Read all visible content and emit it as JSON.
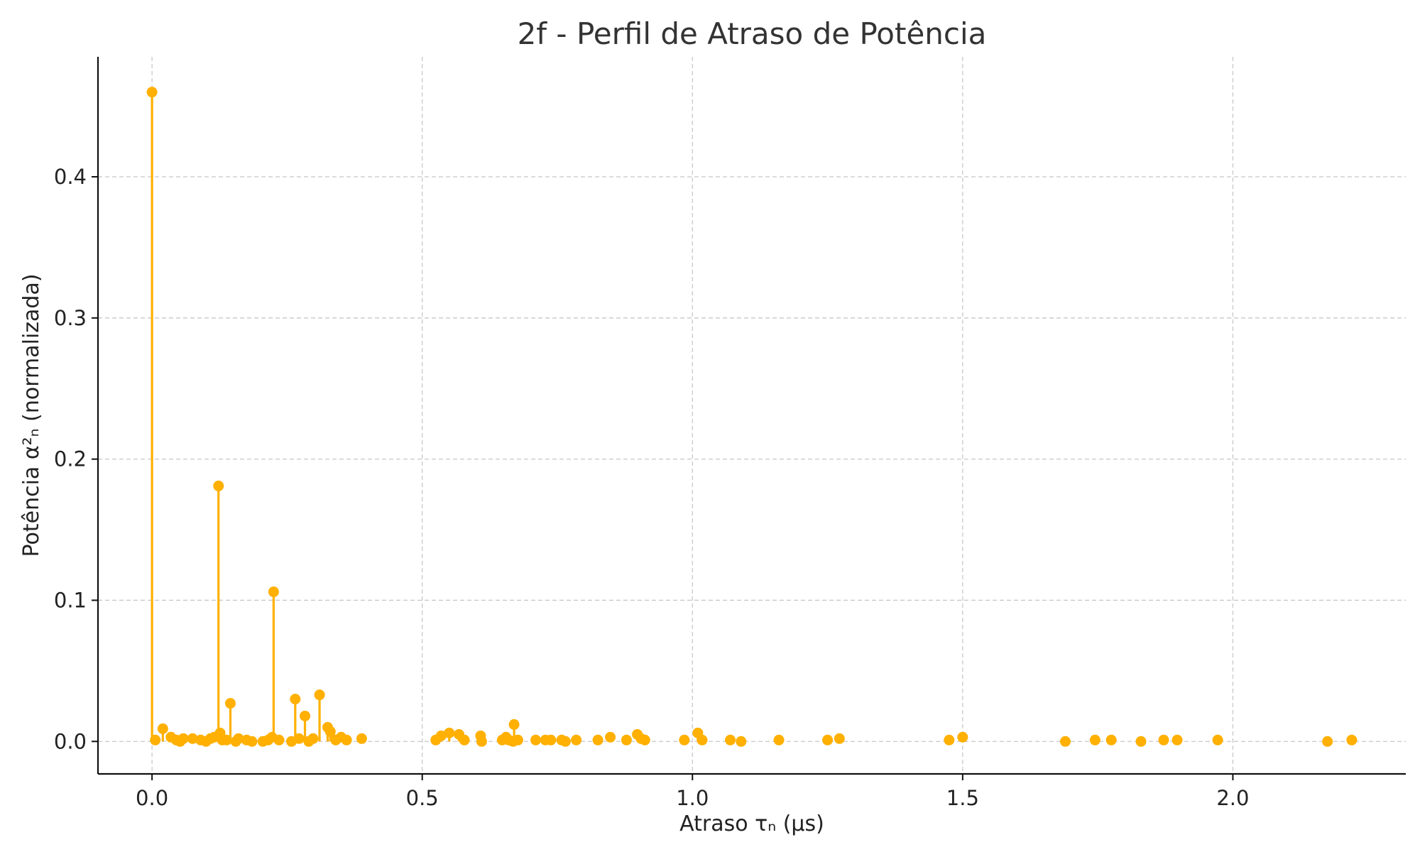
{
  "chart_data": {
    "type": "scatter",
    "style": "stem",
    "title": "2f - Perfil de Atraso de Potência",
    "xlabel": "Atraso τₙ (µs)",
    "ylabel": "Potência α²ₙ (normalizada)",
    "xlim": [
      -0.1,
      2.32
    ],
    "ylim": [
      -0.023,
      0.485
    ],
    "xticks": [
      0.0,
      0.5,
      1.0,
      1.5,
      2.0
    ],
    "xtick_labels": [
      "0.0",
      "0.5",
      "1.0",
      "1.5",
      "2.0"
    ],
    "yticks": [
      0.0,
      0.1,
      0.2,
      0.3,
      0.4
    ],
    "ytick_labels": [
      "0.0",
      "0.1",
      "0.2",
      "0.3",
      "0.4"
    ],
    "grid": true,
    "color": "#FFB000",
    "series": [
      {
        "x": [
          0.0,
          0.006,
          0.02,
          0.035,
          0.045,
          0.052,
          0.058,
          0.075,
          0.09,
          0.1,
          0.108,
          0.115,
          0.123,
          0.126,
          0.13,
          0.138,
          0.145,
          0.155,
          0.16,
          0.175,
          0.185,
          0.205,
          0.215,
          0.222,
          0.225,
          0.235,
          0.258,
          0.265,
          0.272,
          0.283,
          0.29,
          0.298,
          0.31,
          0.325,
          0.33,
          0.34,
          0.35,
          0.36,
          0.388,
          0.525,
          0.535,
          0.55,
          0.568,
          0.578,
          0.608,
          0.61,
          0.648,
          0.655,
          0.66,
          0.668,
          0.67,
          0.677,
          0.71,
          0.728,
          0.738,
          0.758,
          0.765,
          0.785,
          0.825,
          0.848,
          0.878,
          0.898,
          0.905,
          0.912,
          0.985,
          1.01,
          1.018,
          1.07,
          1.09,
          1.16,
          1.25,
          1.272,
          1.475,
          1.5,
          1.69,
          1.745,
          1.775,
          1.83,
          1.872,
          1.897,
          1.972,
          2.175,
          2.22
        ],
        "y": [
          0.46,
          0.001,
          0.009,
          0.003,
          0.001,
          0.0,
          0.002,
          0.002,
          0.001,
          0.0,
          0.002,
          0.003,
          0.181,
          0.006,
          0.001,
          0.001,
          0.027,
          0.0,
          0.002,
          0.001,
          0.0,
          0.0,
          0.001,
          0.003,
          0.106,
          0.001,
          0.0,
          0.03,
          0.002,
          0.018,
          0.0,
          0.002,
          0.033,
          0.01,
          0.007,
          0.001,
          0.003,
          0.001,
          0.002,
          0.001,
          0.004,
          0.006,
          0.005,
          0.001,
          0.004,
          0.0,
          0.001,
          0.003,
          0.001,
          0.0,
          0.012,
          0.001,
          0.001,
          0.001,
          0.001,
          0.001,
          0.0,
          0.001,
          0.001,
          0.003,
          0.001,
          0.005,
          0.002,
          0.001,
          0.001,
          0.006,
          0.001,
          0.001,
          0.0,
          0.001,
          0.001,
          0.002,
          0.001,
          0.003,
          0.0,
          0.001,
          0.001,
          0.0,
          0.001,
          0.001,
          0.001,
          0.0,
          0.001
        ]
      }
    ]
  }
}
